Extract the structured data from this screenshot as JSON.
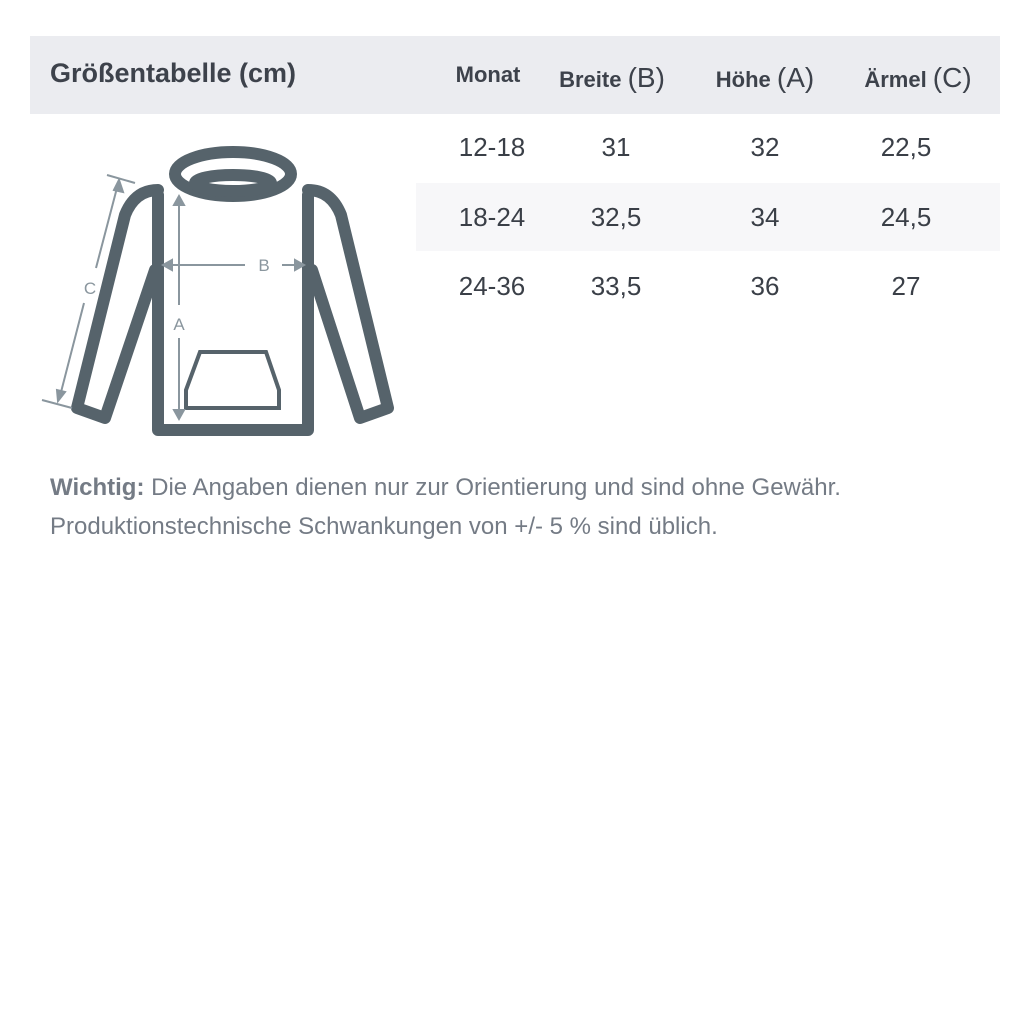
{
  "title": "Größentabelle (cm)",
  "columns": [
    {
      "label": "Monat",
      "letter": ""
    },
    {
      "label": "Breite",
      "letter": "(B)"
    },
    {
      "label": "Höhe",
      "letter": "(A)"
    },
    {
      "label": "Ärmel",
      "letter": "(C)"
    }
  ],
  "rows": [
    [
      "12-18",
      "31",
      "32",
      "22,5"
    ],
    [
      "18-24",
      "32,5",
      "34",
      "24,5"
    ],
    [
      "24-36",
      "33,5",
      "36",
      "27"
    ]
  ],
  "diagram": {
    "label_a": "A",
    "label_b": "B",
    "label_c": "C",
    "stroke_color": "#56636b",
    "arrow_color": "#8a969e"
  },
  "note": {
    "bold": "Wichtig:",
    "line1": " Die Angaben dienen nur zur Orientierung und sind ohne Gewähr.",
    "line2": "Produktionstechnische Schwankungen von +/- 5 % sind üblich."
  }
}
